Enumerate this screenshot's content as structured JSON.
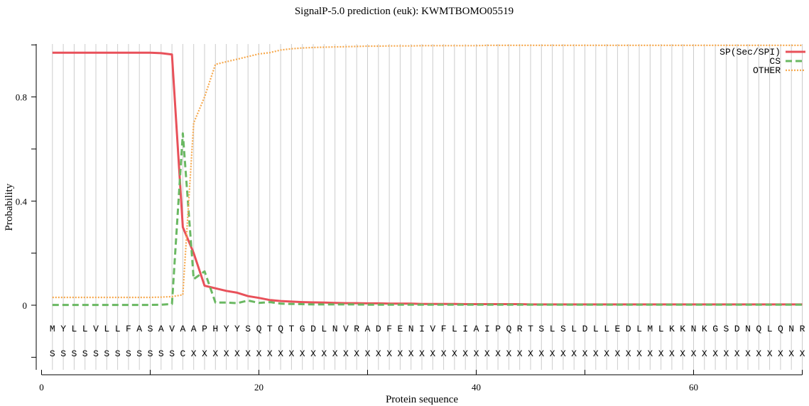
{
  "chart_data": {
    "type": "line",
    "title": "SignalP-5.0 prediction (euk):  KWMTBOMO05519",
    "xlabel": "Protein sequence",
    "ylabel": "Probability",
    "x_ticks": [
      0,
      20,
      40,
      60
    ],
    "y_ticks": [
      "0",
      "0.4",
      "0.8"
    ],
    "xlim": [
      0,
      70
    ],
    "ylim": [
      -0.25,
      1.0
    ],
    "grid": "vertical lines at each residue position",
    "legend_position": "top-right",
    "sequence": "MYLLVLLFASAVAAPHYYSQTQTGDLNVRADFENIVFLIAIPQRTSLSLDLLEDLMLKKNKGSDNQLQNR",
    "labels": "SSSSSSSSSSSSCXXXXXXXXXXXXXXXXXXXXXXXXXXXXXXXXXXXXXXXXXXXXXXXXXXXXXXXXXX",
    "series": [
      {
        "name": "SP(Sec/SPI)",
        "color": "#e8515a",
        "dash": "solid",
        "x": [
          1,
          2,
          3,
          4,
          5,
          6,
          7,
          8,
          9,
          10,
          11,
          12,
          13,
          14,
          15,
          16,
          17,
          18,
          19,
          20,
          21,
          22,
          23,
          24,
          25,
          26,
          27,
          28,
          29,
          30,
          31,
          32,
          33,
          34,
          35,
          36,
          37,
          38,
          39,
          40,
          41,
          42,
          43,
          44,
          45,
          46,
          47,
          48,
          49,
          50,
          51,
          52,
          53,
          54,
          55,
          56,
          57,
          58,
          59,
          60,
          61,
          62,
          63,
          64,
          65,
          66,
          67,
          68,
          69,
          70
        ],
        "values": [
          0.97,
          0.97,
          0.97,
          0.97,
          0.97,
          0.97,
          0.97,
          0.97,
          0.97,
          0.97,
          0.968,
          0.963,
          0.3,
          0.2,
          0.075,
          0.065,
          0.055,
          0.048,
          0.035,
          0.028,
          0.02,
          0.016,
          0.014,
          0.012,
          0.011,
          0.01,
          0.009,
          0.008,
          0.008,
          0.007,
          0.007,
          0.006,
          0.006,
          0.006,
          0.005,
          0.005,
          0.005,
          0.005,
          0.004,
          0.004,
          0.004,
          0.004,
          0.004,
          0.004,
          0.003,
          0.003,
          0.003,
          0.003,
          0.003,
          0.003,
          0.003,
          0.003,
          0.003,
          0.003,
          0.003,
          0.003,
          0.003,
          0.003,
          0.003,
          0.003,
          0.003,
          0.003,
          0.003,
          0.003,
          0.003,
          0.003,
          0.003,
          0.003,
          0.003,
          0.003
        ]
      },
      {
        "name": "CS",
        "color": "#6ab862",
        "dash": "dashed",
        "x": [
          1,
          2,
          3,
          4,
          5,
          6,
          7,
          8,
          9,
          10,
          11,
          12,
          13,
          14,
          15,
          16,
          17,
          18,
          19,
          20,
          21,
          22,
          23,
          24,
          25,
          26,
          27,
          28,
          29,
          30,
          31,
          32,
          33,
          34,
          35,
          36,
          37,
          38,
          39,
          40,
          41,
          42,
          43,
          44,
          45,
          46,
          47,
          48,
          49,
          50,
          51,
          52,
          53,
          54,
          55,
          56,
          57,
          58,
          59,
          60,
          61,
          62,
          63,
          64,
          65,
          66,
          67,
          68,
          69,
          70
        ],
        "values": [
          0.001,
          0.001,
          0.001,
          0.001,
          0.001,
          0.001,
          0.001,
          0.001,
          0.001,
          0.001,
          0.002,
          0.005,
          0.66,
          0.1,
          0.13,
          0.01,
          0.01,
          0.008,
          0.018,
          0.009,
          0.012,
          0.006,
          0.005,
          0.004,
          0.003,
          0.003,
          0.003,
          0.003,
          0.003,
          0.002,
          0.002,
          0.002,
          0.002,
          0.002,
          0.002,
          0.002,
          0.002,
          0.002,
          0.002,
          0.002,
          0.002,
          0.002,
          0.002,
          0.002,
          0.002,
          0.002,
          0.002,
          0.002,
          0.002,
          0.002,
          0.002,
          0.002,
          0.002,
          0.002,
          0.002,
          0.002,
          0.002,
          0.002,
          0.002,
          0.002,
          0.002,
          0.002,
          0.002,
          0.002,
          0.002,
          0.002,
          0.002,
          0.002,
          0.002,
          0.002
        ]
      },
      {
        "name": "OTHER",
        "color": "#f6a94e",
        "dash": "dotted",
        "x": [
          1,
          2,
          3,
          4,
          5,
          6,
          7,
          8,
          9,
          10,
          11,
          12,
          13,
          14,
          15,
          16,
          17,
          18,
          19,
          20,
          21,
          22,
          23,
          24,
          25,
          26,
          27,
          28,
          29,
          30,
          31,
          32,
          33,
          34,
          35,
          36,
          37,
          38,
          39,
          40,
          41,
          42,
          43,
          44,
          45,
          46,
          47,
          48,
          49,
          50,
          51,
          52,
          53,
          54,
          55,
          56,
          57,
          58,
          59,
          60,
          61,
          62,
          63,
          64,
          65,
          66,
          67,
          68,
          69,
          70
        ],
        "values": [
          0.03,
          0.03,
          0.03,
          0.03,
          0.03,
          0.03,
          0.03,
          0.03,
          0.03,
          0.03,
          0.031,
          0.033,
          0.04,
          0.7,
          0.8,
          0.925,
          0.935,
          0.945,
          0.955,
          0.965,
          0.97,
          0.98,
          0.985,
          0.988,
          0.99,
          0.991,
          0.992,
          0.993,
          0.994,
          0.995,
          0.995,
          0.996,
          0.996,
          0.996,
          0.997,
          0.997,
          0.997,
          0.997,
          0.997,
          0.997,
          0.998,
          0.998,
          0.998,
          0.998,
          0.998,
          0.998,
          0.998,
          0.998,
          0.998,
          0.998,
          0.998,
          0.998,
          0.998,
          0.998,
          0.998,
          0.998,
          0.998,
          0.998,
          0.998,
          0.998,
          0.998,
          0.998,
          0.998,
          0.998,
          0.998,
          0.998,
          0.998,
          0.998,
          0.998,
          0.998
        ]
      }
    ]
  }
}
